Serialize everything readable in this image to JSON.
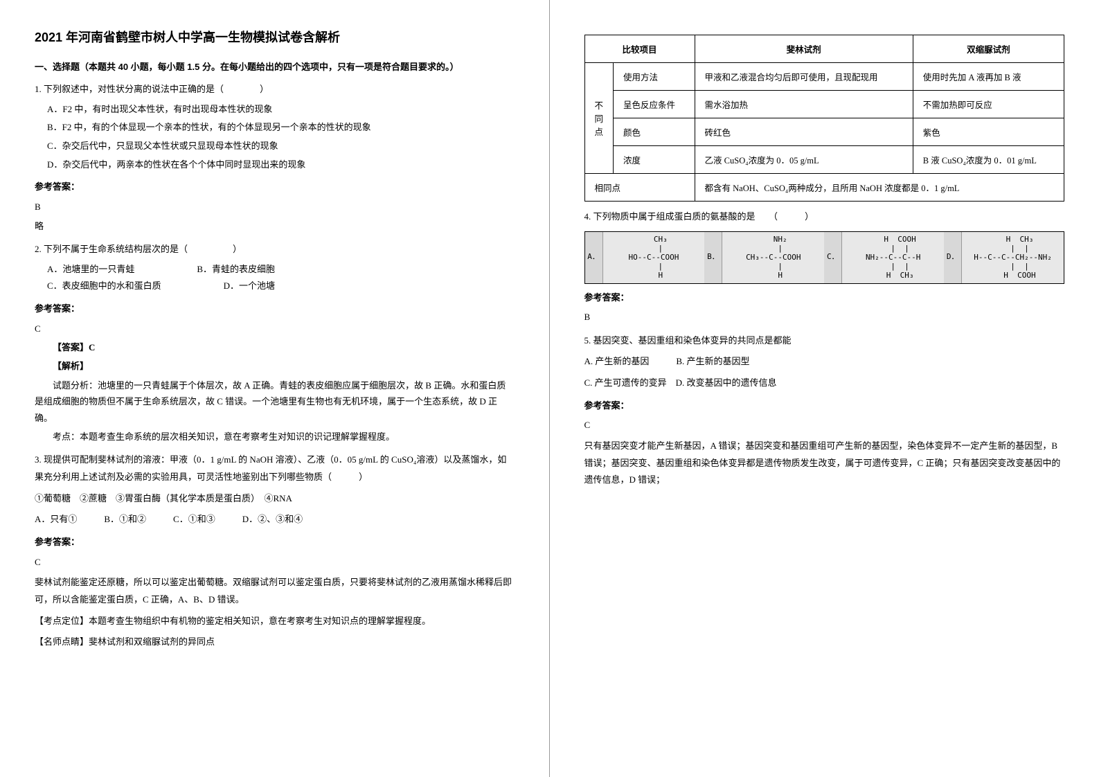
{
  "title": "2021 年河南省鹤壁市树人中学高一生物模拟试卷含解析",
  "section1": "一、选择题（本题共 40 小题，每小题 1.5 分。在每小题给出的四个选项中，只有一项是符合题目要求的。）",
  "q1": {
    "stem": "1. 下列叙述中，对性状分离的说法中正确的是（　　　　）",
    "A": "A．F2 中，有时出现父本性状，有时出现母本性状的现象",
    "B": "B．F2 中，有的个体显现一个亲本的性状，有的个体显现另一个亲本的性状的现象",
    "C": "C．杂交后代中，只显现父本性状或只显现母本性状的现象",
    "D": "D．杂交后代中，两亲本的性状在各个个体中同时显现出来的现象",
    "ansLabel": "参考答案：",
    "ans": "B",
    "ans2": "略"
  },
  "q2": {
    "stem": "2. 下列不属于生命系统结构层次的是（　　　　　）",
    "A": "A．池塘里的一只青蛙",
    "B": "B．青蛙的表皮细胞",
    "C": "C．表皮细胞中的水和蛋白质",
    "D": "D．一个池塘",
    "ansLabel": "参考答案：",
    "ans": "C",
    "expAns": "【答案】C",
    "expHead": "【解析】",
    "exp1": "试题分析：池塘里的一只青蛙属于个体层次，故 A 正确。青蛙的表皮细胞应属于细胞层次，故 B 正确。水和蛋白质是组成细胞的物质但不属于生命系统层次，故 C 错误。一个池塘里有生物也有无机环境，属于一个生态系统，故 D 正确。",
    "exp2": "考点：本题考查生命系统的层次相关知识，意在考察考生对知识的识记理解掌握程度。"
  },
  "q3": {
    "stem1": "3. 现提供可配制斐林试剂的溶液：甲液（0．1 g/mL 的 NaOH 溶液）、乙液（0．05 g/mL 的 CuSO₄溶液）以及蒸馏水，如果充分利用上述试剂及必需的实验用具，可灵活性地鉴别出下列哪些物质（　　　）",
    "stem2": "①葡萄糖　②蔗糖　③胃蛋白酶（其化学本质是蛋白质）　④RNA",
    "opts": "A．只有①　　　B．①和②　　　C．①和③　　　D．②、③和④",
    "ansLabel": "参考答案：",
    "ans": "C",
    "exp1": "斐林试剂能鉴定还原糖，所以可以鉴定出葡萄糖。双缩脲试剂可以鉴定蛋白质，只要将斐林试剂的乙液用蒸馏水稀释后即可，所以含能鉴定蛋白质，C 正确，A、B、D 错误。",
    "exp2": "【考点定位】本题考查生物组织中有机物的鉴定相关知识，意在考察考生对知识点的理解掌握程度。",
    "exp3": "【名师点睛】斐林试剂和双缩脲试剂的异同点"
  },
  "table": {
    "h1": "比较项目",
    "h2": "斐林试剂",
    "h3": "双缩脲试剂",
    "vhead": "不同点",
    "r1c1": "使用方法",
    "r1c2": "甲液和乙液混合均匀后即可使用，且现配现用",
    "r1c3": "使用时先加 A 液再加 B 液",
    "r2c1": "呈色反应条件",
    "r2c2": "需水浴加热",
    "r2c3": "不需加热即可反应",
    "r3c1": "颜色",
    "r3c2": "砖红色",
    "r3c3": "紫色",
    "r4c1": "浓度",
    "r4c2": "乙液 CuSO₄浓度为 0．05 g/mL",
    "r4c3": "B 液 CuSO₄浓度为 0．01 g/mL",
    "r5c1": "相同点",
    "r5c2": "都含有 NaOH、CuSO₄两种成分，且所用 NaOH 浓度都是 0．1 g/mL"
  },
  "q4": {
    "stem": "4. 下列物质中属于组成蛋白质的氨基酸的是　　（　　　）",
    "labels": {
      "A": "A．",
      "B": "B．",
      "C": "C．",
      "D": "D．"
    },
    "chem": {
      "A": "   CH₃\n   |\nHO--C--COOH\n   |\n   H",
      "B": "   NH₂\n   |\nCH₃--C--COOH\n   |\n   H",
      "C": "   H  COOH\n   |  |\nNH₂--C--C--H\n   |  |\n   H  CH₃",
      "D": "   H  CH₃\n   |  |\nH--C--C--CH₂--NH₂\n   |  |\n   H  COOH"
    },
    "ansLabel": "参考答案：",
    "ans": "B"
  },
  "q5": {
    "stem": "5. 基因突变、基因重组和染色体变异的共同点是都能",
    "optsAB": "A. 产生新的基因　　　B. 产生新的基因型",
    "optsCD": "C. 产生可遗传的变异　D. 改变基因中的遗传信息",
    "ansLabel": "参考答案：",
    "ans": "C",
    "exp": "只有基因突变才能产生新基因，A 错误；基因突变和基因重组可产生新的基因型，染色体变异不一定产生新的基因型，B 错误；基因突变、基因重组和染色体变异都是遗传物质发生改变，属于可遗传变异，C 正确；只有基因突变改变基因中的遗传信息，D 错误；"
  }
}
